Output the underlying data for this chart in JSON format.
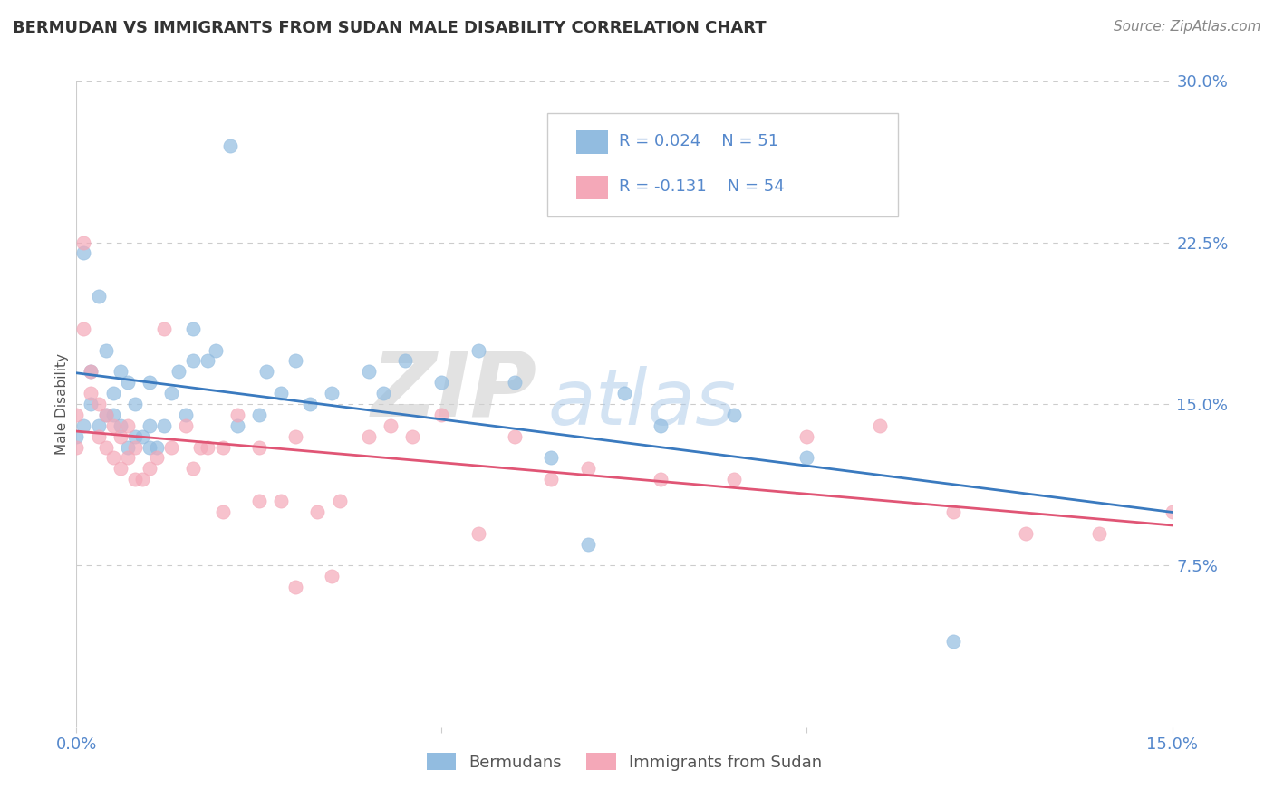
{
  "title": "BERMUDAN VS IMMIGRANTS FROM SUDAN MALE DISABILITY CORRELATION CHART",
  "source": "Source: ZipAtlas.com",
  "ylabel": "Male Disability",
  "xlim": [
    0.0,
    0.15
  ],
  "ylim": [
    0.0,
    0.3
  ],
  "legend_labels": [
    "Bermudans",
    "Immigrants from Sudan"
  ],
  "R_blue": 0.024,
  "N_blue": 51,
  "R_pink": -0.131,
  "N_pink": 54,
  "color_blue": "#92bce0",
  "color_pink": "#f4a8b8",
  "line_blue": "#3a7abf",
  "line_pink": "#e05575",
  "watermark_zip": "ZIP",
  "watermark_atlas": "atlas",
  "title_color": "#333333",
  "source_color": "#888888",
  "tick_color": "#5588cc",
  "ylabel_color": "#555555",
  "blue_x": [
    0.0,
    0.001,
    0.001,
    0.002,
    0.002,
    0.003,
    0.003,
    0.004,
    0.004,
    0.005,
    0.005,
    0.006,
    0.006,
    0.007,
    0.007,
    0.008,
    0.008,
    0.009,
    0.01,
    0.01,
    0.01,
    0.011,
    0.012,
    0.013,
    0.014,
    0.015,
    0.016,
    0.016,
    0.018,
    0.019,
    0.021,
    0.022,
    0.025,
    0.026,
    0.028,
    0.03,
    0.032,
    0.035,
    0.04,
    0.042,
    0.045,
    0.05,
    0.055,
    0.06,
    0.065,
    0.07,
    0.075,
    0.08,
    0.09,
    0.1,
    0.12
  ],
  "blue_y": [
    0.135,
    0.14,
    0.22,
    0.15,
    0.165,
    0.14,
    0.2,
    0.145,
    0.175,
    0.145,
    0.155,
    0.14,
    0.165,
    0.13,
    0.16,
    0.135,
    0.15,
    0.135,
    0.13,
    0.14,
    0.16,
    0.13,
    0.14,
    0.155,
    0.165,
    0.145,
    0.17,
    0.185,
    0.17,
    0.175,
    0.27,
    0.14,
    0.145,
    0.165,
    0.155,
    0.17,
    0.15,
    0.155,
    0.165,
    0.155,
    0.17,
    0.16,
    0.175,
    0.16,
    0.125,
    0.085,
    0.155,
    0.14,
    0.145,
    0.125,
    0.04
  ],
  "pink_x": [
    0.0,
    0.0,
    0.001,
    0.001,
    0.002,
    0.002,
    0.003,
    0.003,
    0.004,
    0.004,
    0.005,
    0.005,
    0.006,
    0.006,
    0.007,
    0.007,
    0.008,
    0.008,
    0.009,
    0.01,
    0.011,
    0.012,
    0.013,
    0.015,
    0.016,
    0.017,
    0.018,
    0.02,
    0.022,
    0.025,
    0.028,
    0.03,
    0.033,
    0.036,
    0.04,
    0.043,
    0.046,
    0.05,
    0.055,
    0.06,
    0.065,
    0.07,
    0.08,
    0.09,
    0.1,
    0.11,
    0.12,
    0.13,
    0.14,
    0.15,
    0.02,
    0.025,
    0.03,
    0.035
  ],
  "pink_y": [
    0.13,
    0.145,
    0.225,
    0.185,
    0.155,
    0.165,
    0.135,
    0.15,
    0.13,
    0.145,
    0.125,
    0.14,
    0.12,
    0.135,
    0.125,
    0.14,
    0.115,
    0.13,
    0.115,
    0.12,
    0.125,
    0.185,
    0.13,
    0.14,
    0.12,
    0.13,
    0.13,
    0.13,
    0.145,
    0.13,
    0.105,
    0.135,
    0.1,
    0.105,
    0.135,
    0.14,
    0.135,
    0.145,
    0.09,
    0.135,
    0.115,
    0.12,
    0.115,
    0.115,
    0.135,
    0.14,
    0.1,
    0.09,
    0.09,
    0.1,
    0.1,
    0.105,
    0.065,
    0.07
  ]
}
